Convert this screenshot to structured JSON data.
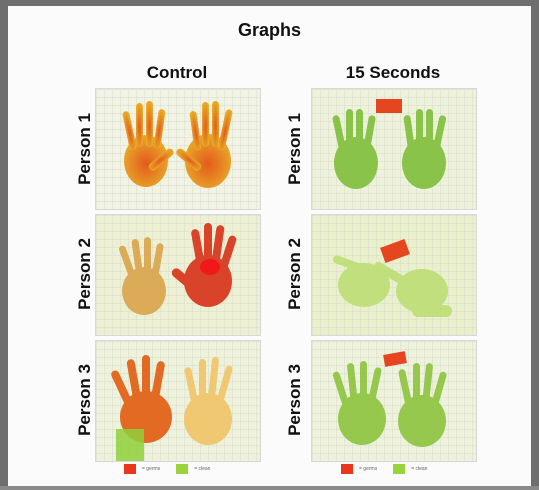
{
  "title": "Graphs",
  "columns": [
    {
      "header": "Control"
    },
    {
      "header": "15 Seconds"
    }
  ],
  "rows": [
    {
      "label": "Person 1"
    },
    {
      "label": "Person 2"
    },
    {
      "label": "Person 3"
    }
  ],
  "legend": [
    {
      "label": "= germs",
      "color": "#e8371b"
    },
    {
      "label": "= clean",
      "color": "#9ad43a"
    }
  ],
  "colors": {
    "germs": "#e8371b",
    "clean": "#9ad43a",
    "background": "#fbfbfb"
  }
}
